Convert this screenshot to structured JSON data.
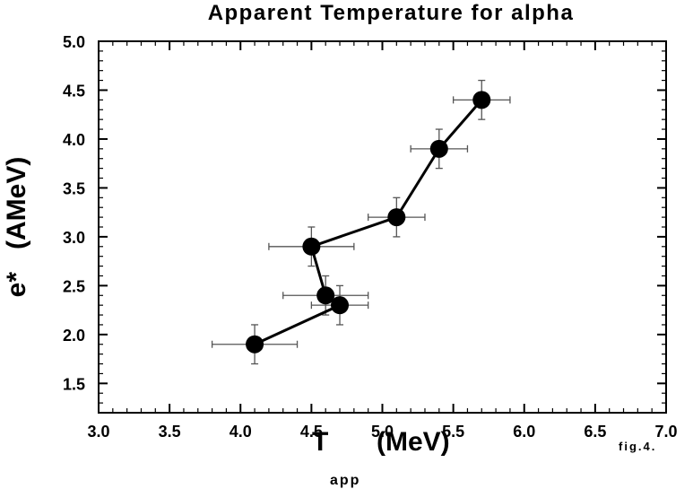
{
  "chart_data": {
    "type": "scatter",
    "title": "Apparent Temperature for alpha",
    "xlabel_main": "T",
    "xlabel_sub": "app",
    "xlabel_unit": "(MeV)",
    "ylabel": "e*   (AMeV)",
    "annotation": "fig.4.",
    "xlim": [
      3.0,
      7.0
    ],
    "ylim": [
      1.2,
      5.0
    ],
    "x_ticks": [
      "3.0",
      "3.5",
      "4.0",
      "4.5",
      "5.0",
      "5.5",
      "6.0",
      "6.5",
      "7.0"
    ],
    "y_ticks": [
      "1.5",
      "2.0",
      "2.5",
      "3.0",
      "3.5",
      "4.0",
      "4.5",
      "5.0"
    ],
    "grid": false,
    "connected": true,
    "points": [
      {
        "x": 4.1,
        "y": 1.9,
        "xerr": 0.3,
        "yerr": 0.2
      },
      {
        "x": 4.7,
        "y": 2.3,
        "xerr": 0.2,
        "yerr": 0.2
      },
      {
        "x": 4.6,
        "y": 2.4,
        "xerr": 0.3,
        "yerr": 0.2
      },
      {
        "x": 4.5,
        "y": 2.9,
        "xerr": 0.3,
        "yerr": 0.2
      },
      {
        "x": 5.1,
        "y": 3.2,
        "xerr": 0.2,
        "yerr": 0.2
      },
      {
        "x": 5.4,
        "y": 3.9,
        "xerr": 0.2,
        "yerr": 0.2
      },
      {
        "x": 5.7,
        "y": 4.4,
        "xerr": 0.2,
        "yerr": 0.2
      }
    ],
    "colors": {
      "line": "#000000",
      "marker": "#000000",
      "errorbar": "#555555"
    }
  }
}
